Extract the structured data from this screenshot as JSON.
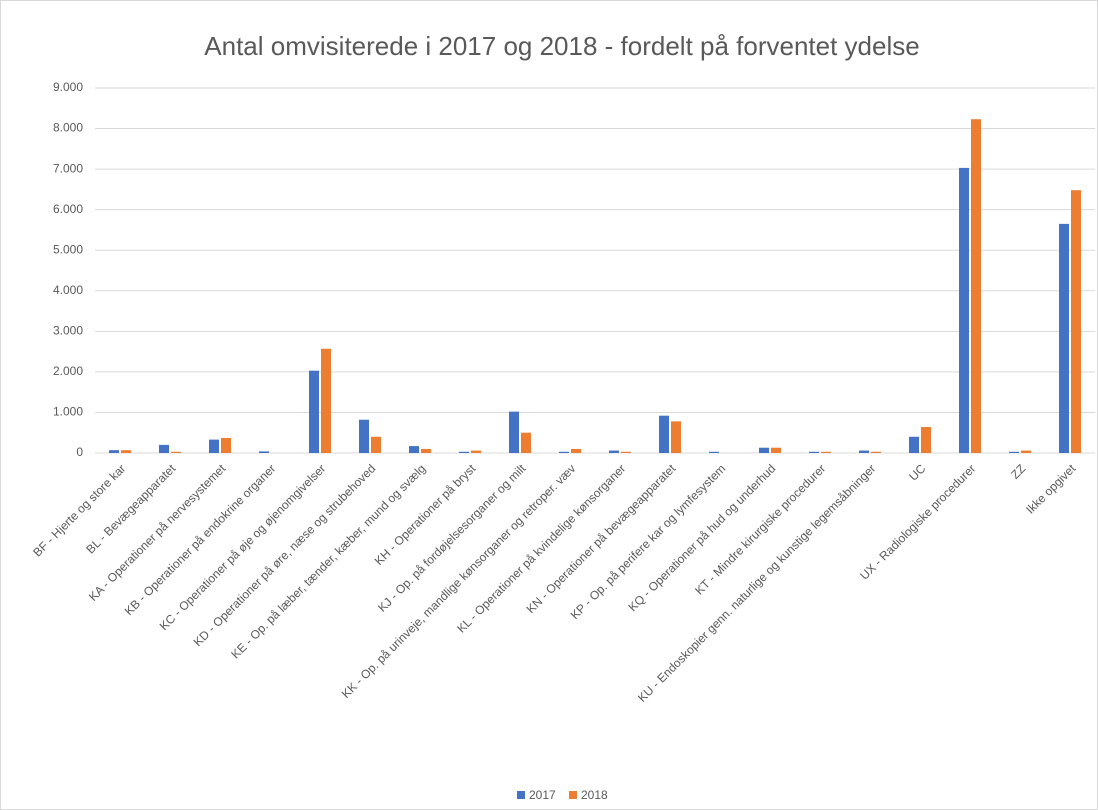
{
  "chart_data": {
    "type": "bar",
    "title": "Antal omvisiterede i 2017 og 2018 - fordelt på forventet ydelse",
    "categories": [
      "BF - Hjerte og store kar",
      "BL - Bevægeapparatet",
      "KA - Operationer på nervesystemet",
      "KB - Operationer på endokrine organer",
      "KC - Operationer på øje og øjenomgivelser",
      "KD - Operationer på øre, næse og strubehoved",
      "KE - Op. på læber, tænder, kæber, mund og svælg",
      "KH - Operationer på bryst",
      "KJ - Op. på fordøjelsesorganer og milt",
      "KK - Op. på urinveje, mandlige kønsorganer og retroper. væv",
      "KL - Operationer på kvindelige kønsorganer",
      "KN - Operationer på bevægeapparatet",
      "KP - Op. på perifere kar og lymfesystem",
      "KQ - Operationer på hud og underhud",
      "KT - Mindre kirurgiske procedurer",
      "KU - Endoskopier genn. naturlige og kunstige legemsåbninger",
      "UC",
      "UX - Radiologiske procedurer",
      "ZZ",
      "Ikke opgivet"
    ],
    "series": [
      {
        "name": "2017",
        "color": "#4472c4",
        "values": [
          70,
          200,
          330,
          40,
          2030,
          820,
          170,
          30,
          1020,
          30,
          60,
          920,
          30,
          130,
          30,
          60,
          400,
          7030,
          30,
          5650
        ]
      },
      {
        "name": "2018",
        "color": "#ed7d31",
        "values": [
          70,
          30,
          370,
          0,
          2570,
          400,
          100,
          60,
          500,
          100,
          30,
          780,
          0,
          130,
          30,
          30,
          640,
          8230,
          60,
          6480
        ]
      }
    ],
    "ylim": [
      0,
      9000
    ],
    "yticks": [
      0,
      {
        "value": 1000,
        "label": "1.000"
      },
      {
        "value": 2000,
        "label": "2.000"
      },
      {
        "value": 3000,
        "label": "3.000"
      },
      {
        "value": 4000,
        "label": "4.000"
      },
      {
        "value": 5000,
        "label": "5.000"
      },
      {
        "value": 6000,
        "label": "6.000"
      },
      {
        "value": 7000,
        "label": "7.000"
      },
      {
        "value": 8000,
        "label": "8.000"
      },
      {
        "value": 9000,
        "label": "9.000"
      }
    ],
    "grid": true,
    "legend": "bottom"
  }
}
